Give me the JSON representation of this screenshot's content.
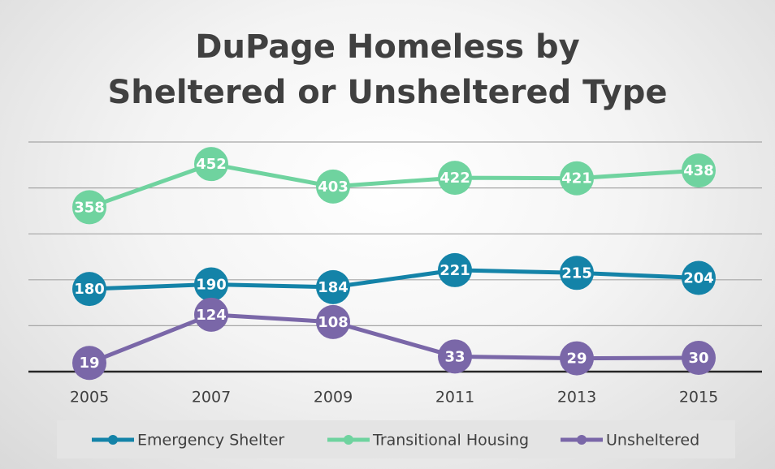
{
  "chart_data": {
    "type": "line",
    "title": "DuPage Homeless by Sheltered or Unsheltered Type",
    "categories": [
      "2005",
      "2007",
      "2009",
      "2011",
      "2013",
      "2015"
    ],
    "series": [
      {
        "name": "Emergency Shelter",
        "color": "#1483a8",
        "values": [
          180,
          190,
          184,
          221,
          215,
          204
        ]
      },
      {
        "name": "Transitional Housing",
        "color": "#6fd39f",
        "values": [
          358,
          452,
          403,
          422,
          421,
          438
        ]
      },
      {
        "name": "Unsheltered",
        "color": "#7a67a8",
        "values": [
          19,
          124,
          108,
          33,
          29,
          30
        ]
      }
    ],
    "ylim": [
      0,
      500
    ],
    "yticks": [
      0,
      100,
      200,
      300,
      400,
      500
    ],
    "grid": true
  }
}
